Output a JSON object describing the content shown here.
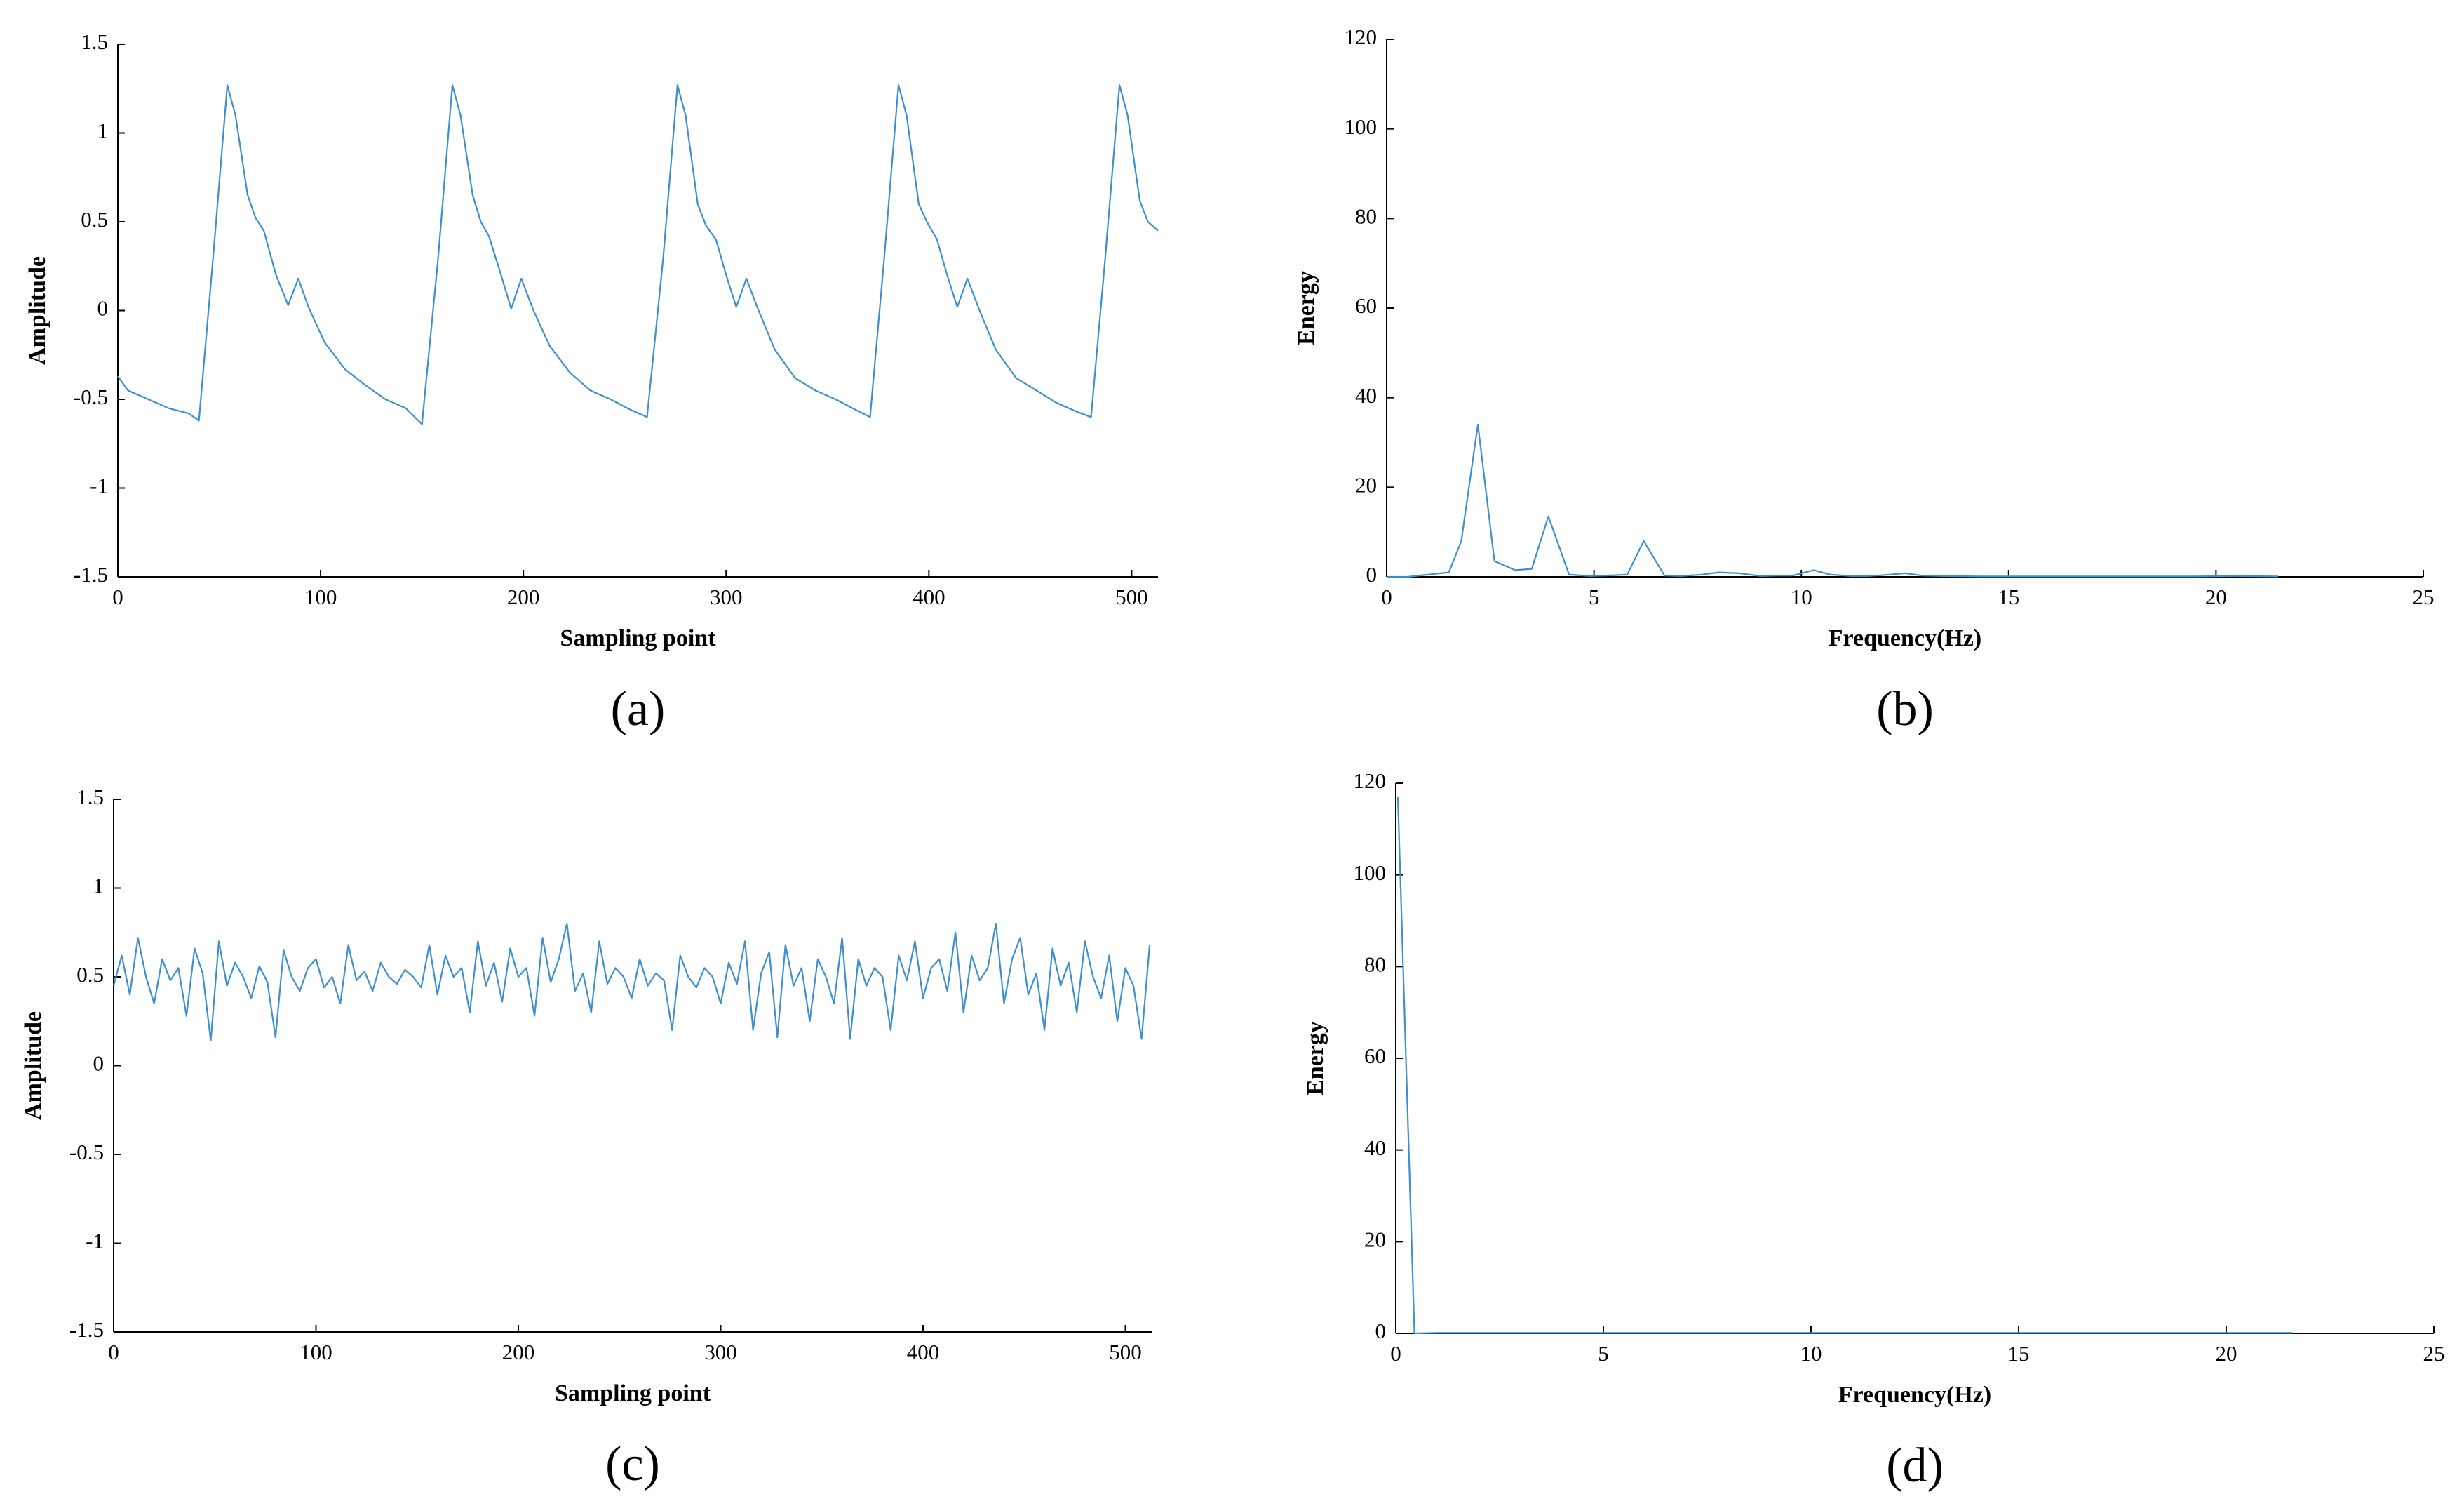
{
  "chart_data": [
    {
      "type": "line",
      "caption": "(a)",
      "x_label": "Sampling point",
      "y_label": "Amplitude",
      "color": "#3d8fd1",
      "xlim": [
        0,
        513
      ],
      "xticks": [
        0,
        100,
        200,
        300,
        400,
        500
      ],
      "ylim": [
        -1.5,
        1.5
      ],
      "yticks": [
        -1.5,
        -1,
        -0.5,
        0,
        0.5,
        1,
        1.5
      ],
      "x": [
        0,
        5,
        15,
        25,
        35,
        40,
        47,
        54,
        58,
        64,
        68,
        72,
        78,
        84,
        89,
        94,
        102,
        112,
        122,
        132,
        142,
        150,
        158,
        165,
        169,
        175,
        179,
        183,
        189,
        194,
        199,
        205,
        213,
        223,
        233,
        243,
        253,
        261,
        269,
        276,
        280,
        286,
        290,
        295,
        300,
        305,
        310,
        316,
        324,
        334,
        344,
        354,
        364,
        371,
        378,
        385,
        389,
        395,
        399,
        404,
        409,
        414,
        419,
        425,
        433,
        443,
        453,
        463,
        473,
        480,
        487,
        494,
        498,
        504,
        508,
        513
      ],
      "values": [
        -0.37,
        -0.45,
        -0.5,
        -0.55,
        -0.58,
        -0.62,
        0.3,
        1.27,
        1.1,
        0.65,
        0.52,
        0.45,
        0.2,
        0.03,
        0.18,
        0.02,
        -0.18,
        -0.33,
        -0.42,
        -0.5,
        -0.55,
        -0.64,
        0.3,
        1.27,
        1.1,
        0.65,
        0.5,
        0.42,
        0.2,
        0.01,
        0.18,
        0.0,
        -0.2,
        -0.35,
        -0.45,
        -0.5,
        -0.56,
        -0.6,
        0.3,
        1.27,
        1.1,
        0.6,
        0.48,
        0.4,
        0.2,
        0.02,
        0.18,
        0.0,
        -0.22,
        -0.38,
        -0.45,
        -0.5,
        -0.56,
        -0.6,
        0.3,
        1.27,
        1.1,
        0.6,
        0.5,
        0.4,
        0.2,
        0.02,
        0.18,
        0.0,
        -0.22,
        -0.38,
        -0.45,
        -0.52,
        -0.57,
        -0.6,
        0.3,
        1.27,
        1.1,
        0.62,
        0.5,
        0.45
      ]
    },
    {
      "type": "line",
      "caption": "(b)",
      "x_label": "Frequency(Hz)",
      "y_label": "Energy",
      "color": "#3d8fd1",
      "xlim": [
        0,
        25
      ],
      "xticks": [
        0,
        5,
        10,
        15,
        20,
        25
      ],
      "ylim": [
        0,
        120
      ],
      "yticks": [
        0,
        20,
        40,
        60,
        80,
        100,
        120
      ],
      "x": [
        0,
        0.5,
        1,
        1.5,
        1.8,
        2.2,
        2.6,
        3.1,
        3.5,
        3.9,
        4.4,
        4.9,
        5.3,
        5.8,
        6.2,
        6.7,
        7.1,
        7.6,
        8.0,
        8.5,
        9.0,
        9.4,
        9.8,
        10.3,
        10.7,
        11.2,
        11.6,
        12.0,
        12.5,
        12.9,
        13.4,
        14.3,
        15.2,
        16.5,
        18,
        19.5,
        20.5,
        21.5
      ],
      "values": [
        0,
        0,
        0.5,
        1,
        8,
        34,
        3.5,
        1.5,
        1.8,
        13.5,
        0.5,
        0.2,
        0.3,
        0.5,
        8,
        0.3,
        0.2,
        0.5,
        1,
        0.8,
        0.2,
        0.3,
        0.3,
        1.5,
        0.5,
        0.2,
        0.2,
        0.4,
        0.8,
        0.3,
        0.2,
        0.1,
        0.1,
        0.1,
        0.1,
        0.1,
        0.2,
        0.1
      ]
    },
    {
      "type": "line",
      "caption": "(c)",
      "x_label": "Sampling point",
      "y_label": "Amplitude",
      "color": "#3d8fd1",
      "xlim": [
        0,
        513
      ],
      "xticks": [
        0,
        100,
        200,
        300,
        400,
        500
      ],
      "ylim": [
        -1.5,
        1.5
      ],
      "yticks": [
        -1.5,
        -1,
        -0.5,
        0,
        0.5,
        1,
        1.5
      ],
      "x": [
        0,
        4,
        8,
        12,
        16,
        20,
        24,
        28,
        32,
        36,
        40,
        44,
        48,
        52,
        56,
        60,
        64,
        68,
        72,
        76,
        80,
        84,
        88,
        92,
        96,
        100,
        104,
        108,
        112,
        116,
        120,
        124,
        128,
        132,
        136,
        140,
        144,
        148,
        152,
        156,
        160,
        164,
        168,
        172,
        176,
        180,
        184,
        188,
        192,
        196,
        200,
        204,
        208,
        212,
        216,
        220,
        224,
        228,
        232,
        236,
        240,
        244,
        248,
        252,
        256,
        260,
        264,
        268,
        272,
        276,
        280,
        284,
        288,
        292,
        296,
        300,
        304,
        308,
        312,
        316,
        320,
        324,
        328,
        332,
        336,
        340,
        344,
        348,
        352,
        356,
        360,
        364,
        368,
        372,
        376,
        380,
        384,
        388,
        392,
        396,
        400,
        404,
        408,
        412,
        416,
        420,
        424,
        428,
        432,
        436,
        440,
        444,
        448,
        452,
        456,
        460,
        464,
        468,
        472,
        476,
        480,
        484,
        488,
        492,
        496,
        500,
        504,
        508,
        512
      ],
      "values": [
        0.45,
        0.62,
        0.4,
        0.72,
        0.5,
        0.35,
        0.6,
        0.48,
        0.55,
        0.28,
        0.66,
        0.52,
        0.14,
        0.7,
        0.45,
        0.58,
        0.5,
        0.38,
        0.56,
        0.47,
        0.16,
        0.65,
        0.5,
        0.42,
        0.55,
        0.6,
        0.44,
        0.5,
        0.35,
        0.68,
        0.48,
        0.53,
        0.42,
        0.58,
        0.5,
        0.46,
        0.54,
        0.5,
        0.44,
        0.68,
        0.4,
        0.62,
        0.5,
        0.55,
        0.3,
        0.7,
        0.45,
        0.58,
        0.36,
        0.66,
        0.5,
        0.55,
        0.28,
        0.72,
        0.47,
        0.6,
        0.8,
        0.42,
        0.52,
        0.3,
        0.7,
        0.46,
        0.55,
        0.5,
        0.38,
        0.6,
        0.45,
        0.52,
        0.48,
        0.2,
        0.62,
        0.5,
        0.44,
        0.55,
        0.5,
        0.35,
        0.58,
        0.46,
        0.7,
        0.2,
        0.52,
        0.64,
        0.16,
        0.68,
        0.45,
        0.55,
        0.25,
        0.6,
        0.5,
        0.35,
        0.72,
        0.15,
        0.6,
        0.45,
        0.55,
        0.5,
        0.2,
        0.62,
        0.48,
        0.7,
        0.38,
        0.55,
        0.6,
        0.42,
        0.75,
        0.3,
        0.62,
        0.48,
        0.55,
        0.8,
        0.35,
        0.6,
        0.72,
        0.4,
        0.52,
        0.2,
        0.66,
        0.45,
        0.58,
        0.3,
        0.7,
        0.5,
        0.38,
        0.62,
        0.25,
        0.55,
        0.45,
        0.15,
        0.68
      ]
    },
    {
      "type": "line",
      "caption": "(d)",
      "x_label": "Frequency(Hz)",
      "y_label": "Energy",
      "color": "#3d8fd1",
      "xlim": [
        0,
        25
      ],
      "xticks": [
        0,
        5,
        10,
        15,
        20,
        25
      ],
      "ylim": [
        0,
        120
      ],
      "yticks": [
        0,
        20,
        40,
        60,
        80,
        100,
        120
      ],
      "x": [
        0.05,
        0.45,
        1,
        2,
        5,
        8,
        10,
        13,
        15,
        17,
        20,
        21.6
      ],
      "values": [
        117,
        0,
        0.1,
        0.1,
        0.1,
        0.1,
        0.1,
        0.1,
        0.1,
        0.1,
        0.1,
        0.1
      ]
    }
  ]
}
